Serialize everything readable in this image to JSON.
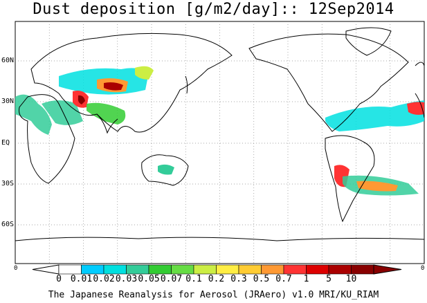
{
  "title": "Dust deposition [g/m2/day]:: 12Sep2014",
  "lat_labels": [
    "60N",
    "30N",
    "EQ",
    "30S",
    "60S"
  ],
  "edge_ticks": {
    "left": "0",
    "right": "0"
  },
  "colorbar": {
    "labels": [
      "0",
      "0.01",
      "0.02",
      "0.03",
      "0.05",
      "0.07",
      "0.1",
      "0.2",
      "0.3",
      "0.5",
      "0.7",
      "1",
      "5",
      "10"
    ],
    "colors": [
      "#ffffff",
      "#00ccff",
      "#00e0e0",
      "#33cc99",
      "#33cc33",
      "#66dd44",
      "#ccee44",
      "#ffee44",
      "#ffcc33",
      "#ff9933",
      "#ff3333",
      "#dd0000",
      "#aa0000",
      "#880000"
    ]
  },
  "footer": "The Japanese Reanalysis for Aerosol (JRAero) v1.0 MRI/KU_RIAM"
}
